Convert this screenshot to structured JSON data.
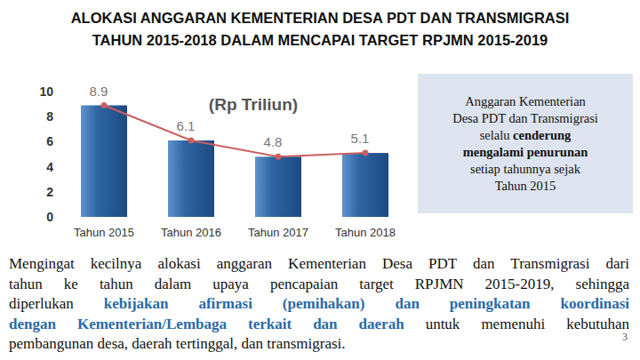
{
  "header": {
    "lines": [
      "ALOKASI ANGGARAN KEMENTERIAN DESA PDT DAN TRANSMIGRASI",
      "TAHUN 2015-2018 DALAM MENCAPAI TARGET RPJMN 2015-2019"
    ]
  },
  "chart_data": {
    "type": "bar",
    "y_label": "(Rp Triliun)",
    "categories": [
      "Tahun 2015",
      "Tahun 2016",
      "Tahun 2017",
      "Tahun 2018"
    ],
    "values": [
      8.9,
      6.1,
      4.8,
      5.1
    ],
    "color": "#2e66a6",
    "marker": "circle",
    "line_style": "solid",
    "data_labels": true,
    "grid": false,
    "ylim": [
      0,
      10
    ],
    "yticks": [
      0,
      2,
      4,
      6,
      8,
      10
    ]
  },
  "note": {
    "lines": [
      [
        {
          "text": "Anggaran Kementerian"
        }
      ],
      [
        {
          "text": "Desa PDT dan Transmigrasi"
        }
      ],
      [
        {
          "text": "selalu "
        },
        {
          "text": "cenderung",
          "bold": true
        }
      ],
      [
        {
          "text": "mengalami penurunan",
          "bold": true
        }
      ],
      [
        {
          "text": "setiap tahunnya sejak"
        }
      ],
      [
        {
          "text": "Tahun 2015"
        }
      ]
    ]
  },
  "paragraph": {
    "lines": [
      [
        {
          "text": "Mengingat kecilnya alokasi anggaran Kementerian Desa PDT dan Transmigrasi dari"
        }
      ],
      [
        {
          "text": "tahun ke tahun dalam upaya pencapaian target RPJMN 2015-2019, sehingga"
        }
      ],
      [
        {
          "text": "diperlukan "
        },
        {
          "text": "kebijakan afirmasi (pemihakan) dan peningkatan koordinasi",
          "highlight": true
        }
      ],
      [
        {
          "text": "dengan Kementerian/Lembaga terkait dan daerah",
          "highlight": true
        },
        {
          "text": " untuk memenuhi kebutuhan"
        }
      ],
      [
        {
          "text": "pembangunan desa, daerah tertinggal, dan transmigrasi."
        }
      ]
    ]
  },
  "page_number": "3"
}
